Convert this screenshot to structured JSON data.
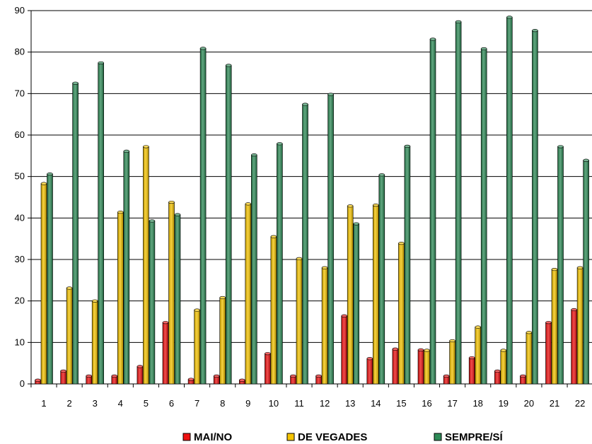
{
  "chart_data": {
    "type": "bar",
    "categories": [
      "1",
      "2",
      "3",
      "4",
      "5",
      "6",
      "7",
      "8",
      "9",
      "10",
      "11",
      "12",
      "13",
      "14",
      "15",
      "16",
      "17",
      "18",
      "19",
      "20",
      "21",
      "22"
    ],
    "series": [
      {
        "name": "MAI/NO",
        "color": "#ee1111",
        "values": [
          0.9,
          3.1,
          1.9,
          1.9,
          4.2,
          14.8,
          1.1,
          1.9,
          0.9,
          7.3,
          1.9,
          1.9,
          16.4,
          6.1,
          8.4,
          8.2,
          1.9,
          6.3,
          3.1,
          1.9,
          14.8,
          17.9
        ]
      },
      {
        "name": "DE VEGADES",
        "color": "#f5c400",
        "values": [
          48.3,
          23.1,
          20.0,
          41.4,
          57.2,
          43.8,
          17.8,
          20.8,
          43.4,
          35.5,
          30.2,
          28.0,
          42.9,
          43.1,
          33.9,
          8.1,
          10.4,
          13.7,
          8.1,
          12.4,
          27.6,
          28.0
        ]
      },
      {
        "name": "SEMPRE/SÍ",
        "color": "#2e8b57",
        "values": [
          50.6,
          72.5,
          77.4,
          56.1,
          39.3,
          40.8,
          80.9,
          76.8,
          55.2,
          57.9,
          67.4,
          69.8,
          38.6,
          50.4,
          57.3,
          83.1,
          87.3,
          80.8,
          88.4,
          85.2,
          57.2,
          53.9
        ]
      }
    ],
    "ylim": [
      0,
      90
    ],
    "yticks": [
      "0",
      "10",
      "20",
      "30",
      "40",
      "50",
      "60",
      "70",
      "80",
      "90"
    ],
    "grid": true,
    "legend": "bottom"
  }
}
